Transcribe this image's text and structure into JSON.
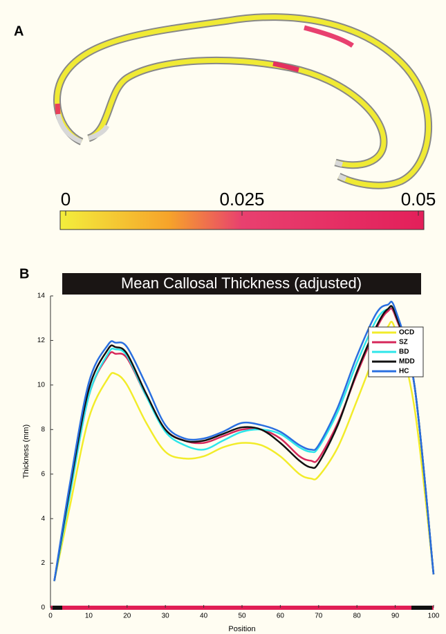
{
  "panel_a": {
    "label": "A",
    "colorbar": {
      "lim": [
        0,
        0.05
      ],
      "ticks": [
        0,
        0.025,
        0.05
      ]
    }
  },
  "chart_data": {
    "type": "line",
    "panel_label": "B",
    "title": "Mean Callosal Thickness (adjusted)",
    "x_label": "Position",
    "y_label": "Thickness (mm)",
    "x": [
      1,
      5,
      10,
      15,
      17,
      20,
      25,
      30,
      35,
      40,
      45,
      50,
      55,
      60,
      65,
      68,
      70,
      75,
      80,
      85,
      88,
      90,
      95,
      100
    ],
    "xlim": [
      0,
      100
    ],
    "xticks": [
      0,
      10,
      20,
      30,
      40,
      50,
      60,
      70,
      80,
      90,
      100
    ],
    "ylim": [
      0,
      14
    ],
    "yticks": [
      0,
      2,
      4,
      6,
      8,
      10,
      12,
      14
    ],
    "legend": "upper right",
    "series": [
      {
        "name": "OCD",
        "color": "#f2ec2a",
        "values": [
          1.2,
          4.5,
          8.5,
          10.3,
          10.5,
          10.0,
          8.3,
          7.0,
          6.7,
          6.8,
          7.2,
          7.4,
          7.3,
          6.8,
          6.0,
          5.8,
          5.9,
          7.2,
          9.3,
          11.5,
          12.6,
          12.5,
          9.0,
          1.5
        ]
      },
      {
        "name": "SZ",
        "color": "#d6275a",
        "values": [
          1.2,
          5.0,
          9.5,
          11.3,
          11.4,
          11.2,
          9.5,
          8.0,
          7.5,
          7.4,
          7.7,
          8.0,
          8.0,
          7.6,
          6.8,
          6.6,
          6.7,
          8.3,
          10.5,
          12.5,
          13.3,
          13.1,
          10.0,
          1.5
        ]
      },
      {
        "name": "BD",
        "color": "#2de6ea",
        "values": [
          1.2,
          5.0,
          9.5,
          11.4,
          11.6,
          11.3,
          9.5,
          7.9,
          7.3,
          7.1,
          7.5,
          7.9,
          8.0,
          7.8,
          7.2,
          7.0,
          7.2,
          8.8,
          11.0,
          12.9,
          13.4,
          13.2,
          10.0,
          1.5
        ]
      },
      {
        "name": "MDD",
        "color": "#111111",
        "values": [
          1.2,
          5.3,
          9.8,
          11.6,
          11.7,
          11.4,
          9.6,
          8.0,
          7.5,
          7.5,
          7.8,
          8.1,
          8.0,
          7.4,
          6.6,
          6.3,
          6.5,
          8.2,
          10.6,
          12.6,
          13.4,
          13.2,
          10.0,
          1.5
        ]
      },
      {
        "name": "HC",
        "color": "#2a6fe0",
        "values": [
          1.2,
          5.5,
          10.1,
          11.8,
          11.9,
          11.7,
          10.0,
          8.2,
          7.6,
          7.6,
          7.9,
          8.3,
          8.2,
          7.9,
          7.3,
          7.1,
          7.3,
          9.0,
          11.3,
          13.2,
          13.6,
          13.4,
          10.0,
          1.5
        ]
      }
    ]
  }
}
